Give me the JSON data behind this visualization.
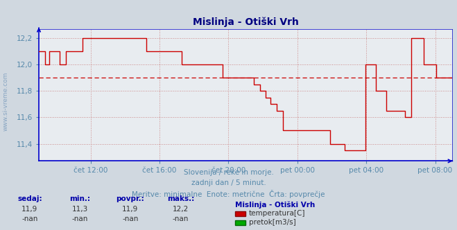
{
  "title": "Mislinja - Otiški Vrh",
  "bg_color": "#d0d8e0",
  "plot_bg_color": "#e8ecf0",
  "line_color": "#cc0000",
  "avg_line_color": "#cc0000",
  "avg_line_value": 11.9,
  "spine_color": "#0000cc",
  "grid_color": "#cc8888",
  "title_color": "#000080",
  "label_color": "#5588aa",
  "footer_label_color": "#0000aa",
  "watermark_color": "#7799bb",
  "ylabel_text": "www.si-vreme.com",
  "subtitle1": "Slovenija / reke in morje.",
  "subtitle2": "zadnji dan / 5 minut.",
  "subtitle3": "Meritve: minimalne  Enote: metrične  Črta: povprečje",
  "legend_title": "Mislinja - Otiški Vrh",
  "legend_temp_label": "temperatura[C]",
  "legend_flow_label": "pretok[m3/s]",
  "stats_headers": [
    "sedaj:",
    "min.:",
    "povpr.:",
    "maks.:"
  ],
  "stats_row1": [
    "11,9",
    "11,3",
    "11,9",
    "12,2"
  ],
  "stats_row2": [
    "-nan",
    "-nan",
    "-nan",
    "-nan"
  ],
  "x_tick_labels": [
    "čet 12:00",
    "čet 16:00",
    "čet 20:00",
    "pet 00:00",
    "pet 04:00",
    "pet 08:00"
  ],
  "x_tick_positions": [
    0.125,
    0.29167,
    0.45833,
    0.625,
    0.79167,
    0.95833
  ],
  "ylim": [
    11.27,
    12.27
  ],
  "yticks": [
    11.4,
    11.6,
    11.8,
    12.0,
    12.2
  ],
  "temp_data_x": [
    0.0,
    0.01,
    0.015,
    0.025,
    0.04,
    0.05,
    0.065,
    0.08,
    0.09,
    0.105,
    0.125,
    0.14,
    0.155,
    0.17,
    0.185,
    0.2,
    0.215,
    0.23,
    0.245,
    0.26,
    0.27,
    0.285,
    0.3,
    0.315,
    0.33,
    0.345,
    0.358,
    0.37,
    0.385,
    0.4,
    0.415,
    0.43,
    0.445,
    0.456,
    0.47,
    0.49,
    0.5,
    0.51,
    0.52,
    0.535,
    0.548,
    0.56,
    0.575,
    0.59,
    0.61,
    0.625,
    0.638,
    0.65,
    0.663,
    0.675,
    0.69,
    0.705,
    0.72,
    0.74,
    0.755,
    0.79,
    0.8,
    0.815,
    0.825,
    0.84,
    0.855,
    0.87,
    0.885,
    0.9,
    0.915,
    0.93,
    0.945,
    0.96,
    0.975,
    1.0
  ],
  "temp_data_y": [
    12.1,
    12.1,
    12.0,
    12.1,
    12.1,
    12.0,
    12.1,
    12.1,
    12.1,
    12.2,
    12.2,
    12.2,
    12.2,
    12.2,
    12.2,
    12.2,
    12.2,
    12.2,
    12.2,
    12.1,
    12.1,
    12.1,
    12.1,
    12.1,
    12.1,
    12.0,
    12.0,
    12.0,
    12.0,
    12.0,
    12.0,
    12.0,
    11.9,
    11.9,
    11.9,
    11.9,
    11.9,
    11.9,
    11.85,
    11.8,
    11.75,
    11.7,
    11.65,
    11.5,
    11.5,
    11.5,
    11.5,
    11.5,
    11.5,
    11.5,
    11.5,
    11.4,
    11.4,
    11.35,
    11.35,
    12.0,
    12.0,
    11.8,
    11.8,
    11.65,
    11.65,
    11.65,
    11.6,
    12.2,
    12.2,
    12.0,
    12.0,
    11.9,
    11.9,
    11.9
  ]
}
